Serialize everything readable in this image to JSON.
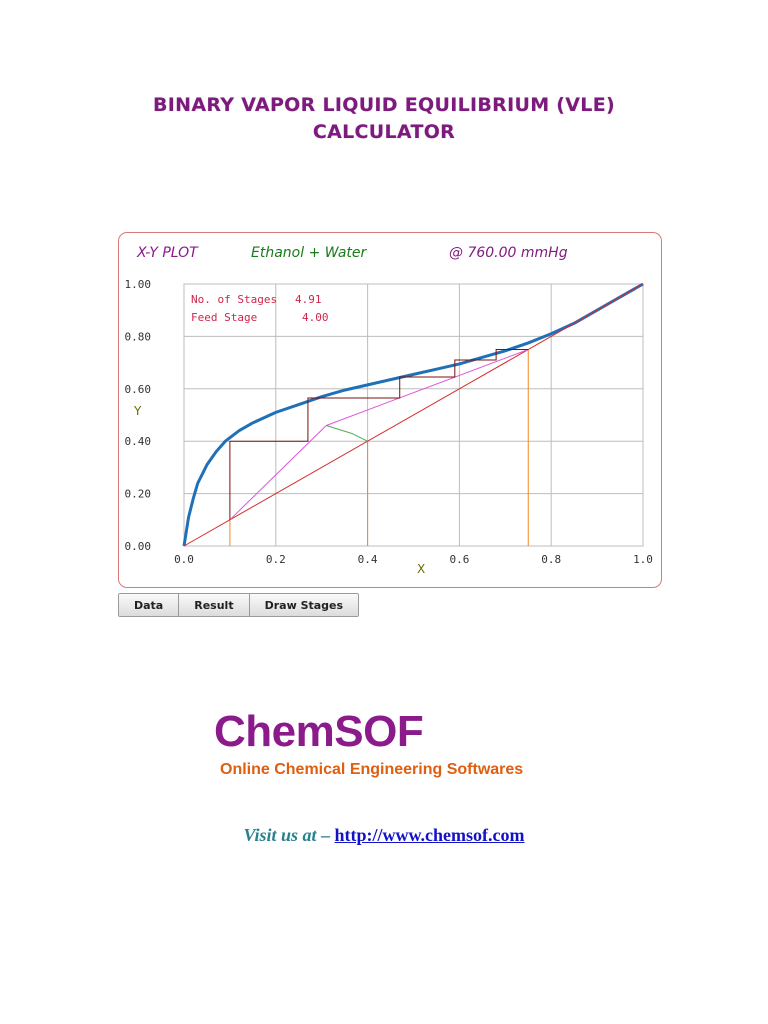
{
  "page": {
    "title_line1": "BINARY VAPOR LIQUID EQUILIBRIUM (VLE)",
    "title_line2": "CALCULATOR"
  },
  "plot": {
    "header_plot": "X-Y PLOT",
    "header_system": "Ethanol + Water",
    "header_pressure": "@ 760.00 mmHg",
    "info_stages_label": "No. of Stages",
    "info_stages_value": "4.91",
    "info_feed_label": "Feed Stage",
    "info_feed_value": "4.00"
  },
  "buttons": {
    "data": "Data",
    "result": "Result",
    "draw_stages": "Draw Stages"
  },
  "logo": {
    "name": "ChemSOF",
    "tagline": "Online Chemical Engineering Softwares"
  },
  "footer": {
    "visit_prefix": "Visit us at",
    "dash": "–",
    "link": "http://www.chemsof.com"
  },
  "colors": {
    "equilibrium_curve": "#2070b8",
    "diagonal": "#d42a2a",
    "operating_line": "#dd55dd",
    "q_line": "#55aa55",
    "stages": "#7a1010",
    "markers": "#f08a1e",
    "title": "#7d1a7d"
  },
  "chart_data": {
    "type": "line",
    "title": "X-Y PLOT",
    "xlabel": "X",
    "ylabel": "Y",
    "xlim": [
      0,
      1
    ],
    "ylim": [
      0,
      1
    ],
    "grid": true,
    "x_ticks": [
      "0.0",
      "0.2",
      "0.4",
      "0.6",
      "0.8",
      "1.0"
    ],
    "y_ticks": [
      "0.00",
      "0.20",
      "0.40",
      "0.60",
      "0.80",
      "1.00"
    ],
    "series": [
      {
        "x": [
          0,
          0.01,
          0.02,
          0.03,
          0.05,
          0.07,
          0.09,
          0.12,
          0.15,
          0.2,
          0.25,
          0.3,
          0.35,
          0.4,
          0.45,
          0.5,
          0.55,
          0.6,
          0.65,
          0.7,
          0.75,
          0.8,
          0.85,
          0.89,
          0.92,
          0.95,
          1.0
        ],
        "y": [
          0,
          0.11,
          0.18,
          0.24,
          0.31,
          0.36,
          0.4,
          0.44,
          0.47,
          0.51,
          0.54,
          0.57,
          0.595,
          0.615,
          0.635,
          0.655,
          0.675,
          0.695,
          0.72,
          0.745,
          0.775,
          0.81,
          0.85,
          0.89,
          0.92,
          0.95,
          1.0
        ]
      },
      {
        "x": [
          0,
          1
        ],
        "y": [
          0,
          1
        ]
      },
      {
        "x": [
          0.1,
          0.31,
          0.75
        ],
        "y": [
          0.1,
          0.46,
          0.75
        ]
      },
      {
        "x": [
          0.31,
          0.365,
          0.4
        ],
        "y": [
          0.46,
          0.43,
          0.4
        ]
      }
    ],
    "stages": [
      [
        0.1,
        0.1
      ],
      [
        0.1,
        0.4
      ],
      [
        0.27,
        0.4
      ],
      [
        0.27,
        0.565
      ],
      [
        0.47,
        0.565
      ],
      [
        0.47,
        0.645
      ],
      [
        0.59,
        0.645
      ],
      [
        0.59,
        0.71
      ],
      [
        0.68,
        0.71
      ],
      [
        0.68,
        0.75
      ],
      [
        0.75,
        0.75
      ]
    ],
    "markers_x": [
      0.1,
      0.4,
      0.75
    ]
  }
}
